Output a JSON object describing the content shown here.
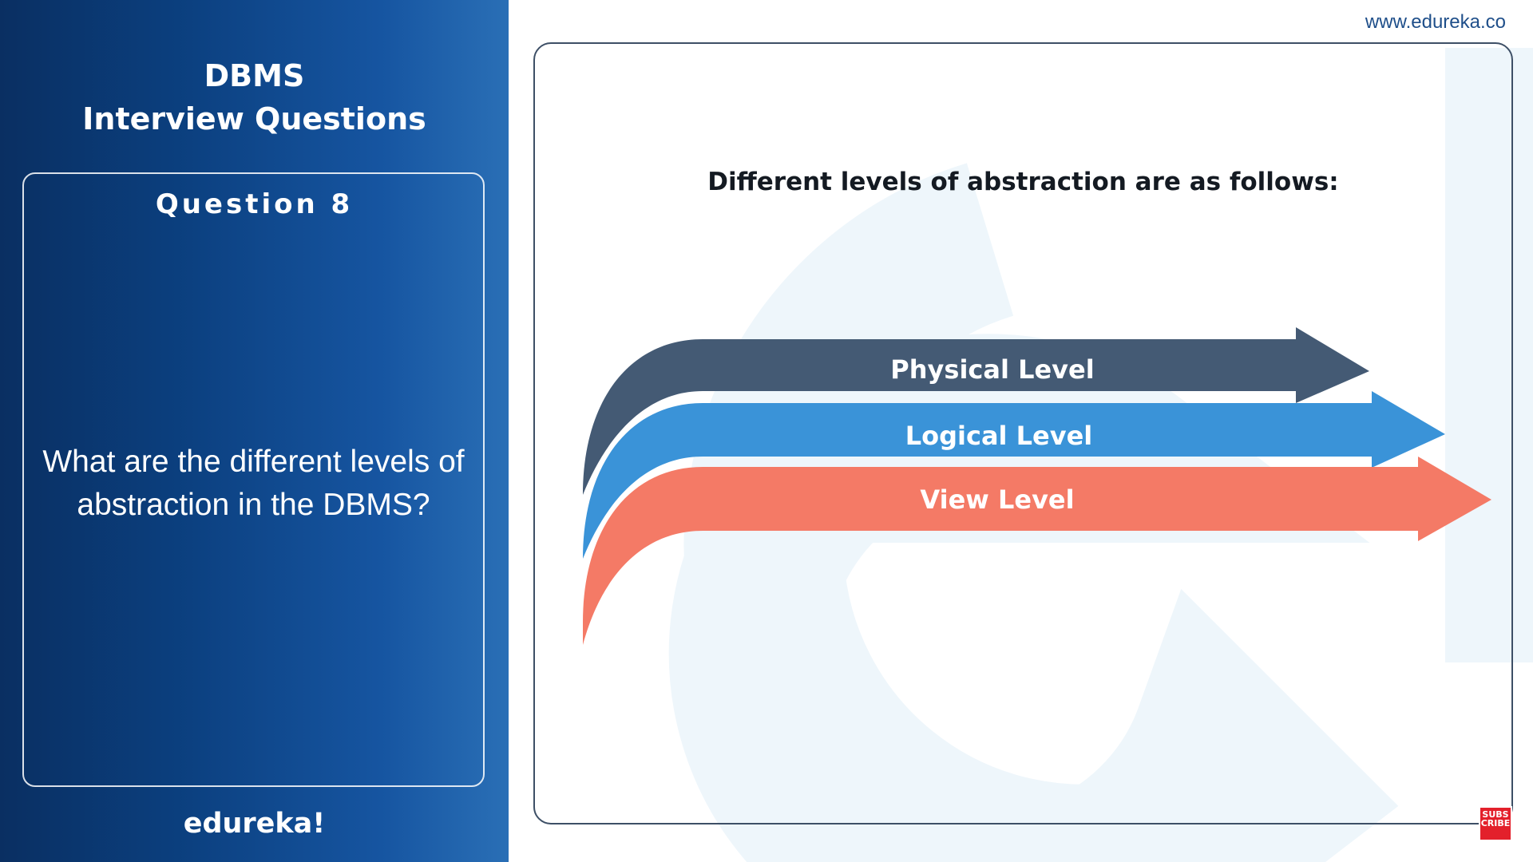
{
  "left_panel": {
    "title_line1": "DBMS",
    "title_line2": "Interview Questions",
    "question_number": "Question 8",
    "question_text": "What are the different levels of abstraction in the DBMS?",
    "brand": "edureka!"
  },
  "header": {
    "site_url": "www.edureka.co"
  },
  "slide": {
    "heading": "Different levels of abstraction are as follows:",
    "levels": [
      {
        "label": "Physical Level",
        "color": "#445a74"
      },
      {
        "label": "Logical Level",
        "color": "#3a93d8"
      },
      {
        "label": "View Level",
        "color": "#f47a66"
      }
    ]
  },
  "badge": {
    "subscribe_text": "SUBS CRIBE"
  },
  "colors": {
    "panel_dark": "#0a2f62",
    "panel_light": "#2a6fb6",
    "watermark": "#eef6fb"
  }
}
